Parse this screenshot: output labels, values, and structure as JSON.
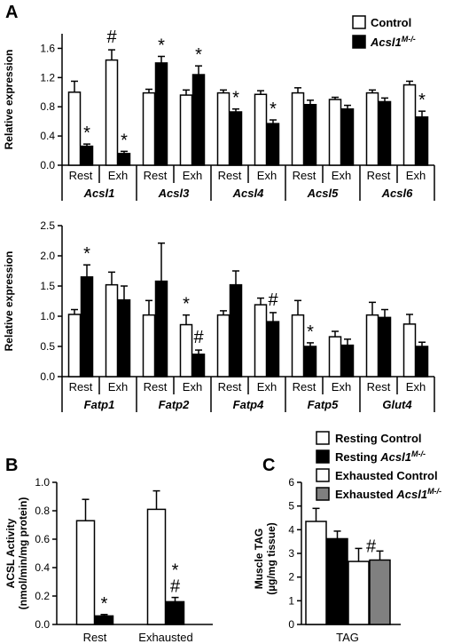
{
  "panel_labels": [
    "A",
    "B",
    "C"
  ],
  "chart_data": [
    {
      "id": "A1",
      "type": "bar",
      "ylabel": "Relative expression",
      "ylim": [
        0,
        1.8
      ],
      "yticks": [
        "0.0",
        "0.4",
        "0.8",
        "1.2",
        "1.6"
      ],
      "groups": [
        "Acsl1",
        "Acsl3",
        "Acsl4",
        "Acsl5",
        "Acsl6"
      ],
      "conditions": [
        "Rest",
        "Exh"
      ],
      "series": [
        {
          "name": "Control",
          "values": [
            1.0,
            1.44,
            0.99,
            0.96,
            0.99,
            0.97,
            0.99,
            0.9,
            0.99,
            1.1
          ],
          "errors": [
            0.15,
            0.14,
            0.05,
            0.07,
            0.04,
            0.05,
            0.07,
            0.03,
            0.04,
            0.05
          ]
        },
        {
          "name": "Acsl1M-/-",
          "values": [
            0.26,
            0.16,
            1.4,
            1.24,
            0.73,
            0.57,
            0.83,
            0.77,
            0.87,
            0.66
          ],
          "errors": [
            0.03,
            0.03,
            0.09,
            0.12,
            0.04,
            0.05,
            0.06,
            0.05,
            0.05,
            0.08
          ]
        }
      ],
      "annotations": [
        {
          "series": 1,
          "index": 0,
          "text": "*"
        },
        {
          "series": 0,
          "index": 1,
          "text": "#"
        },
        {
          "series": 1,
          "index": 1,
          "text": "*"
        },
        {
          "series": 1,
          "index": 2,
          "text": "*"
        },
        {
          "series": 1,
          "index": 3,
          "text": "*"
        },
        {
          "series": 1,
          "index": 4,
          "text": "*"
        },
        {
          "series": 1,
          "index": 5,
          "text": "*"
        },
        {
          "series": 1,
          "index": 9,
          "text": "*"
        }
      ],
      "legend": {
        "position": "top-right",
        "entries": [
          {
            "label": "Control",
            "italic": false
          },
          {
            "label": "Acsl1",
            "sup": "M-/-",
            "italic": true
          }
        ]
      }
    },
    {
      "id": "A2",
      "type": "bar",
      "ylabel": "Relative expression",
      "ylim": [
        0,
        2.5
      ],
      "yticks": [
        "0.0",
        "0.5",
        "1.0",
        "1.5",
        "2.0",
        "2.5"
      ],
      "groups": [
        "Fatp1",
        "Fatp2",
        "Fatp4",
        "Fatp5",
        "Glut4"
      ],
      "conditions": [
        "Rest",
        "Exh"
      ],
      "series": [
        {
          "name": "Control",
          "values": [
            1.03,
            1.52,
            1.02,
            0.86,
            1.02,
            1.19,
            1.02,
            0.66,
            1.02,
            0.87
          ],
          "errors": [
            0.08,
            0.21,
            0.24,
            0.16,
            0.07,
            0.11,
            0.24,
            0.09,
            0.21,
            0.16
          ]
        },
        {
          "name": "Acsl1M-/-",
          "values": [
            1.65,
            1.27,
            1.58,
            0.37,
            1.52,
            0.91,
            0.5,
            0.52,
            0.98,
            0.5
          ],
          "errors": [
            0.2,
            0.23,
            0.63,
            0.07,
            0.23,
            0.15,
            0.06,
            0.1,
            0.13,
            0.07
          ]
        }
      ],
      "annotations": [
        {
          "series": 1,
          "index": 0,
          "text": "*"
        },
        {
          "series": 0,
          "index": 3,
          "text": "*"
        },
        {
          "series": 1,
          "index": 3,
          "text": "#"
        },
        {
          "series": 1,
          "index": 5,
          "text": "#"
        },
        {
          "series": 1,
          "index": 6,
          "text": "*"
        }
      ]
    },
    {
      "id": "B",
      "type": "bar",
      "ylabel_lines": [
        "ACSL Activity",
        "(nmol/min/mg protein)"
      ],
      "ylim": [
        0,
        1.0
      ],
      "yticks": [
        "0.0",
        "0.2",
        "0.4",
        "0.6",
        "0.8",
        "1.0"
      ],
      "categories": [
        "Rest",
        "Exhausted"
      ],
      "series": [
        {
          "name": "Control",
          "values": [
            0.73,
            0.81
          ],
          "errors": [
            0.15,
            0.13
          ]
        },
        {
          "name": "Acsl1M-/-",
          "values": [
            0.06,
            0.16
          ],
          "errors": [
            0.01,
            0.03
          ]
        }
      ],
      "annotations": [
        {
          "series": 1,
          "index": 0,
          "text": "*"
        },
        {
          "series": 1,
          "index": 1,
          "text": "#"
        },
        {
          "series": 1,
          "index": 1,
          "text": "*"
        }
      ]
    },
    {
      "id": "C",
      "type": "bar",
      "ylabel_lines": [
        "Muscle TAG",
        "(µg/mg tissue)"
      ],
      "ylim": [
        0,
        6
      ],
      "yticks": [
        "0",
        "1",
        "2",
        "3",
        "4",
        "5",
        "6"
      ],
      "xlabel": "TAG",
      "series": [
        {
          "name": "Resting Control",
          "value": 4.35,
          "error": 0.55,
          "color": "#ffffff"
        },
        {
          "name": "Resting Acsl1M-/-",
          "value": 3.62,
          "error": 0.32,
          "color": "#000000"
        },
        {
          "name": "Exhausted Control",
          "value": 2.66,
          "error": 0.55,
          "color": "#ffffff"
        },
        {
          "name": "Exhausted Acsl1M-/-",
          "value": 2.72,
          "error": 0.38,
          "color": "#808080"
        }
      ],
      "annotations": [
        {
          "series": 2,
          "text": "#"
        }
      ],
      "legend": {
        "position": "top",
        "entries": [
          {
            "text": "Resting Control",
            "color": "#ffffff"
          },
          {
            "text": "Resting ",
            "italic": "Acsl1",
            "sup": "M-/-",
            "color": "#000000"
          },
          {
            "text": "Exhausted Control",
            "color": "#ffffff"
          },
          {
            "text": "Exhausted ",
            "italic": "Acsl1",
            "sup": "M-/-",
            "color": "#808080"
          }
        ]
      }
    }
  ],
  "colors": {
    "control": "#ffffff",
    "knockout": "#000000",
    "exhausted_knockout": "#808080",
    "axis": "#000000"
  }
}
